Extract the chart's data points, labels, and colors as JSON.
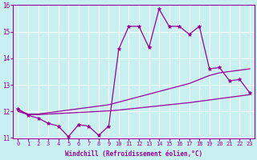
{
  "xlabel": "Windchill (Refroidissement éolien,°C)",
  "background_color": "#c8f0f0",
  "line_color": "#990099",
  "hours": [
    0,
    1,
    2,
    3,
    4,
    5,
    6,
    7,
    8,
    9,
    10,
    11,
    12,
    13,
    14,
    15,
    16,
    17,
    18,
    19,
    20,
    21,
    22,
    23
  ],
  "main_line": [
    12.1,
    11.85,
    11.75,
    11.55,
    11.45,
    11.05,
    11.5,
    11.45,
    11.1,
    11.45,
    14.35,
    15.2,
    15.2,
    14.4,
    15.85,
    15.2,
    15.2,
    14.9,
    15.2,
    13.6,
    13.65,
    13.15,
    13.2,
    12.7
  ],
  "upper_line": [
    12.05,
    11.9,
    11.9,
    11.95,
    12.0,
    12.05,
    12.1,
    12.15,
    12.2,
    12.25,
    12.35,
    12.45,
    12.55,
    12.65,
    12.75,
    12.85,
    12.95,
    13.05,
    13.2,
    13.35,
    13.45,
    13.5,
    13.55,
    13.6
  ],
  "lower_line": [
    12.0,
    11.88,
    11.88,
    11.9,
    11.92,
    11.94,
    11.96,
    11.98,
    12.0,
    12.02,
    12.05,
    12.09,
    12.13,
    12.17,
    12.21,
    12.25,
    12.29,
    12.33,
    12.38,
    12.43,
    12.48,
    12.53,
    12.58,
    12.63
  ],
  "ylim": [
    11.0,
    16.0
  ],
  "yticks": [
    11,
    12,
    13,
    14,
    15,
    16
  ]
}
